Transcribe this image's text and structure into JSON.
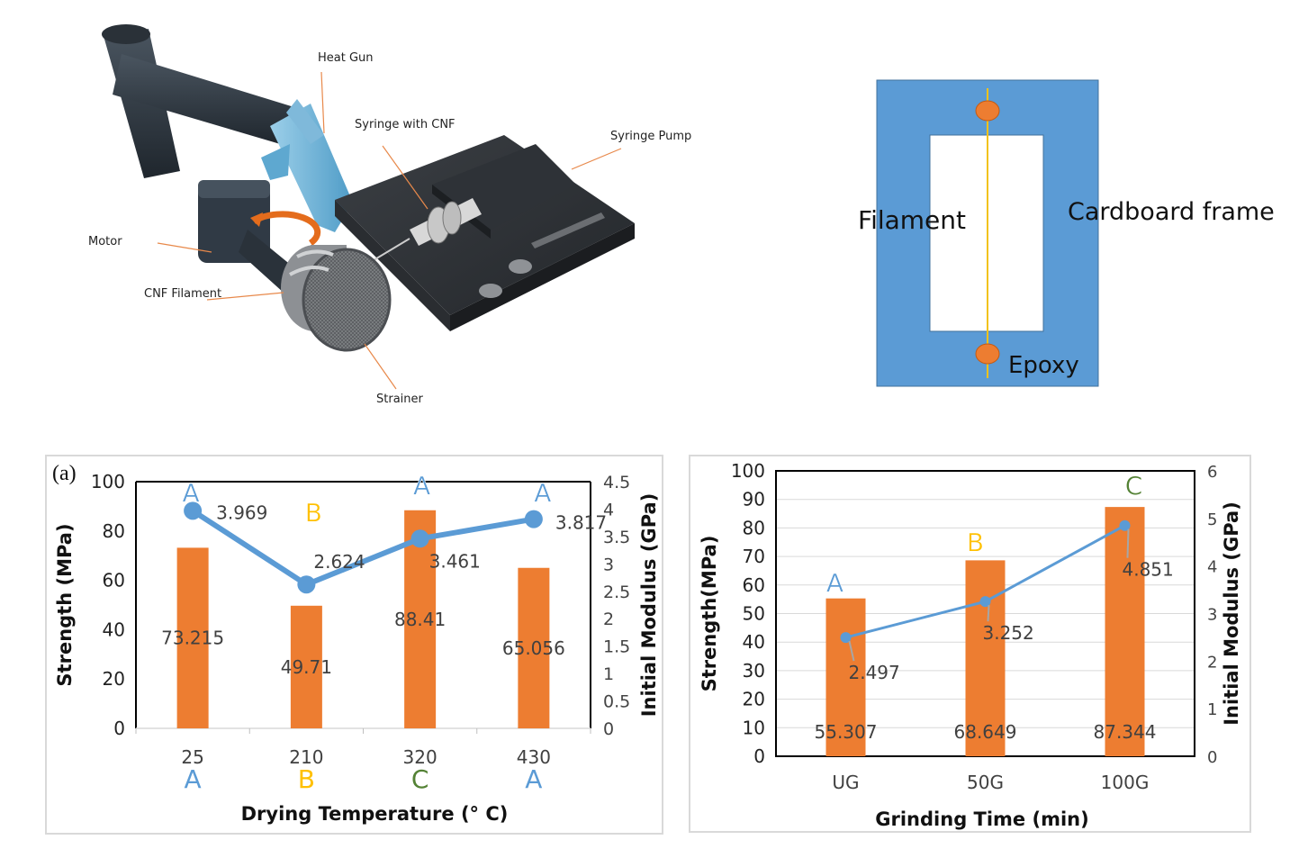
{
  "apparatus": {
    "labels": {
      "heat_gun": "Heat Gun",
      "syringe": "Syringe with CNF",
      "syringe_pump": "Syringe Pump",
      "motor": "Motor",
      "cnf_filament": "CNF Filament",
      "strainer": "Strainer"
    }
  },
  "frame_diagram": {
    "filament": "Filament",
    "cardboard_frame": "Cardboard frame",
    "epoxy": "Epoxy",
    "colors": {
      "frame": "#5b9bd5",
      "window": "#ffffff",
      "filament": "#f2c21b",
      "epoxy": "#ed7d31"
    }
  },
  "chart_data": [
    {
      "type": "bar",
      "panel_label": "(a)",
      "categories": [
        "25",
        "210",
        "320",
        "430"
      ],
      "series": [
        {
          "kind": "bar",
          "axis": "left",
          "color": "#ed7d31",
          "values": [
            73.215,
            49.71,
            88.41,
            65.056
          ]
        },
        {
          "kind": "line",
          "axis": "right",
          "color": "#5b9bd5",
          "values": [
            3.969,
            2.624,
            3.461,
            3.817
          ]
        }
      ],
      "bar_labels": [
        "73.215",
        "49.71",
        "88.41",
        "65.056"
      ],
      "line_labels": [
        "3.969",
        "2.624",
        "3.461",
        "3.817"
      ],
      "top_letters": [
        "A",
        "B",
        "A",
        "A"
      ],
      "bottom_letters": [
        "A",
        "B",
        "C",
        "A"
      ],
      "xlabel": "Drying Temperature (° C)",
      "ylabel": "Strength (MPa)",
      "y2label": "Initial Modulus (GPa)",
      "ylim": [
        0,
        100
      ],
      "yticks": [
        "0",
        "20",
        "40",
        "60",
        "80",
        "100"
      ],
      "y2lim": [
        0,
        4.5
      ],
      "y2ticks": [
        "0",
        "0.5",
        "1",
        "1.5",
        "2",
        "2.5",
        "3",
        "3.5",
        "4",
        "4.5"
      ],
      "grid": false
    },
    {
      "type": "bar",
      "categories": [
        "UG",
        "50G",
        "100G"
      ],
      "series": [
        {
          "kind": "bar",
          "axis": "left",
          "color": "#ed7d31",
          "values": [
            55.307,
            68.649,
            87.344
          ]
        },
        {
          "kind": "line",
          "axis": "right",
          "color": "#5b9bd5",
          "values": [
            2.497,
            3.252,
            4.851
          ]
        }
      ],
      "bar_labels": [
        "55.307",
        "68.649",
        "87.344"
      ],
      "line_labels": [
        "2.497",
        "3.252",
        "4.851"
      ],
      "top_letters": [
        "A",
        "B",
        "C"
      ],
      "xlabel": "Grinding  Time  (min)",
      "ylabel": "Strength(MPa)",
      "y2label": "Initial Modulus (GPa)",
      "ylim": [
        0,
        100
      ],
      "yticks": [
        "0",
        "10",
        "20",
        "30",
        "40",
        "50",
        "60",
        "70",
        "80",
        "90",
        "100"
      ],
      "y2lim": [
        0,
        6
      ],
      "y2ticks": [
        "0",
        "1",
        "2",
        "3",
        "4",
        "5",
        "6"
      ],
      "grid": true
    }
  ],
  "letter_colors": {
    "A": "#5b9bd5",
    "B": "#ffc000",
    "C": "#548235"
  }
}
